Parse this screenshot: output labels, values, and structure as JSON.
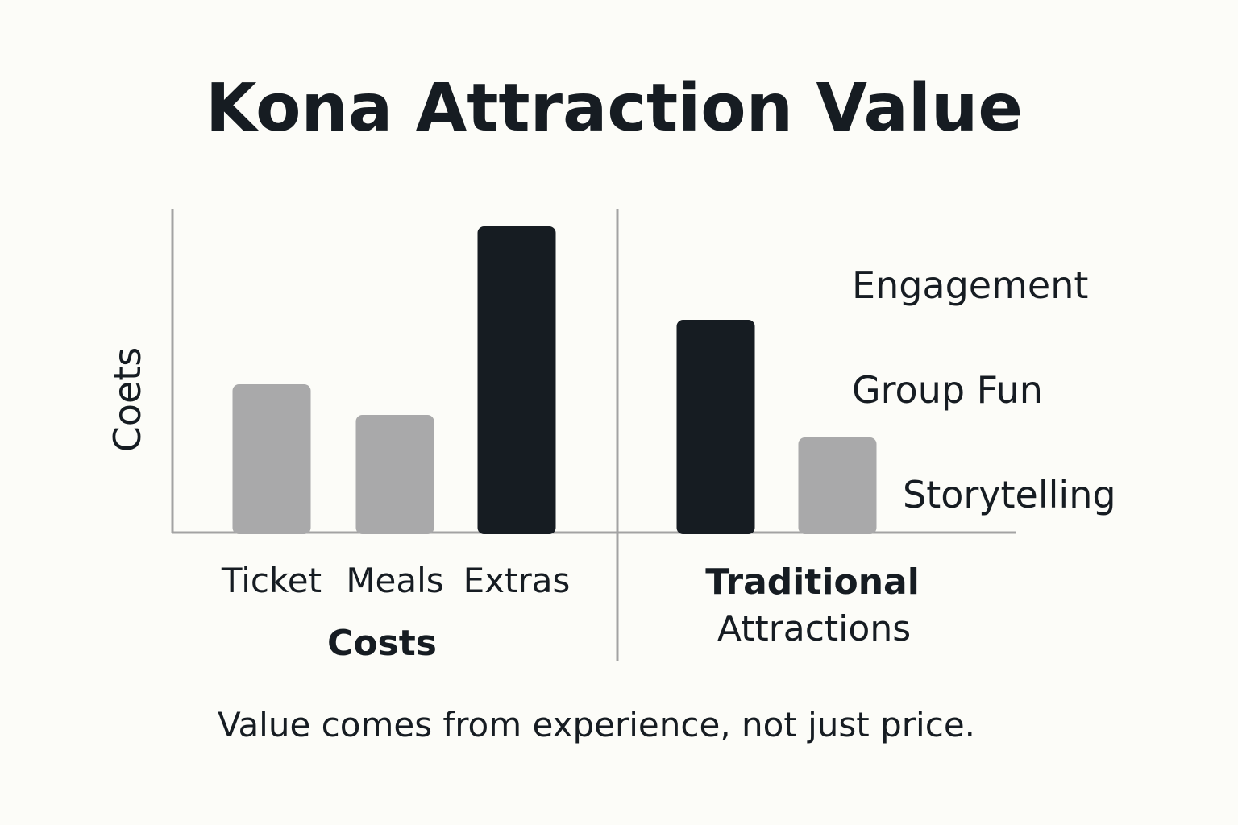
{
  "chart_data": {
    "type": "bar",
    "title": "Kona Attraction Value",
    "ylabel": "Coets",
    "caption": "Value comes from experience, not just price.",
    "ylim": [
      0,
      10
    ],
    "colors": {
      "light": "#a9a9aa",
      "dark": "#161c22",
      "axis": "#a3a3a3"
    },
    "panels": [
      {
        "group_label_bold": "Costs",
        "group_label_rest": "",
        "categories": [
          "Ticket",
          "Meals",
          "Extras"
        ],
        "values": [
          4.6,
          3.65,
          9.5
        ],
        "bar_colors": [
          "light",
          "light",
          "dark"
        ]
      },
      {
        "group_label_bold": "Traditional",
        "group_label_rest": "Attractions",
        "categories": [
          "",
          ""
        ],
        "values": [
          6.6,
          2.95
        ],
        "bar_colors": [
          "dark",
          "light"
        ]
      }
    ],
    "side_labels": [
      "Engagement",
      "Group Fun",
      "Storytelling"
    ]
  }
}
